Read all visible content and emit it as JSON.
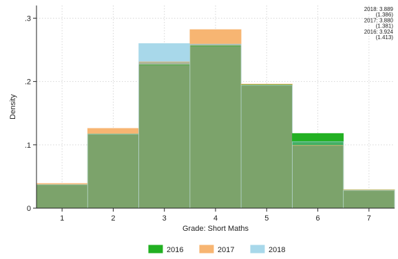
{
  "chart_data": {
    "type": "bar",
    "subtype": "overlaid-histogram",
    "xlabel": "Grade: Short Maths",
    "ylabel": "Density",
    "categories": [
      "1",
      "2",
      "3",
      "4",
      "5",
      "6",
      "7"
    ],
    "x": [
      1,
      2,
      3,
      4,
      5,
      6,
      7
    ],
    "xlim": [
      0.5,
      7.5
    ],
    "ylim": [
      0,
      0.32
    ],
    "yticks": [
      0,
      0.1,
      0.2,
      0.3
    ],
    "yticklabels": [
      "0",
      ".1",
      ".2",
      ".3"
    ],
    "grid": true,
    "legend_position": "bottom",
    "series": [
      {
        "name": "2016",
        "color": "#22b022",
        "values": [
          0.037,
          0.117,
          0.226,
          0.256,
          0.195,
          0.118,
          0.029
        ]
      },
      {
        "name": "2017",
        "color": "#f7b572",
        "values": [
          0.039,
          0.126,
          0.231,
          0.282,
          0.196,
          0.099,
          0.029
        ]
      },
      {
        "name": "2018",
        "color": "#a8d8ea",
        "values": [
          0.037,
          0.117,
          0.26,
          0.259,
          0.194,
          0.105,
          0.028
        ]
      }
    ],
    "annotations": [
      "2018: 3.889",
      "(1.386)",
      "2017: 3.880",
      "(1.381)",
      "2016: 3.924",
      "(1.413)"
    ]
  },
  "colors": {
    "overlap": "#7ca36b",
    "band_2016_2017": "#b8a22a",
    "band_2017_2018": "#a7b59a",
    "band_2016_2018": "#44b062",
    "grid": "#d6d6d6",
    "axis": "#222222"
  }
}
